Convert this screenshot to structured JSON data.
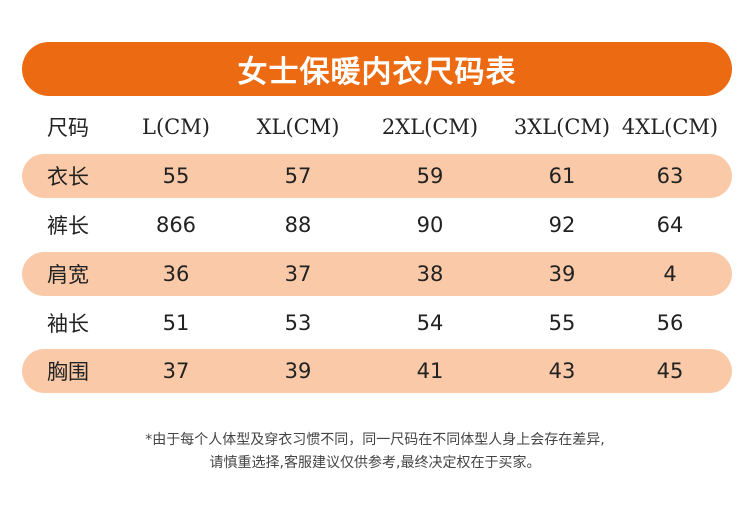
{
  "title": "女士保暖内衣尺码表",
  "header": [
    "尺码",
    "L(CM)",
    "XL(CM)",
    "2XL(CM)",
    "3XL(CM)",
    "4XL(CM)"
  ],
  "rows": [
    {
      "label": "衣长",
      "values": [
        "55",
        "57",
        "59",
        "61",
        "63"
      ]
    },
    {
      "label": "裤长",
      "values": [
        "866",
        "88",
        "90",
        "92",
        "64"
      ]
    },
    {
      "label": "肩宽",
      "values": [
        "36",
        "37",
        "38",
        "39",
        "4"
      ]
    },
    {
      "label": "袖长",
      "values": [
        "51",
        "53",
        "54",
        "55",
        "56"
      ]
    },
    {
      "label": "胸围",
      "values": [
        "37",
        "39",
        "41",
        "43",
        "45"
      ]
    }
  ],
  "notes": [
    "*由于每个人体型及穿衣习惯不同，同一尺码在不同体型人身上会存在差异,",
    "请慎重选择,客服建议仅供参考,最终决定权在于买家。"
  ],
  "colors": {
    "title_bg": "#ec6a12",
    "row_shade": "#f9c9a8",
    "text": "#222222"
  }
}
